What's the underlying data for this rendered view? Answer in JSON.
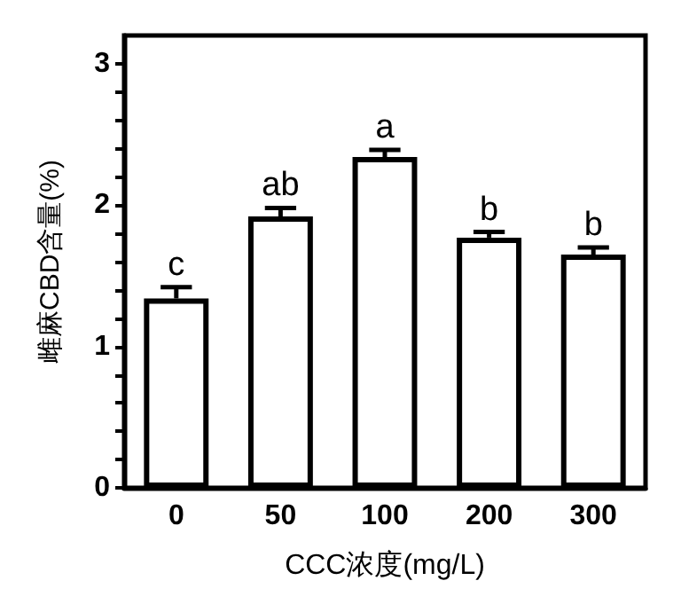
{
  "chart_data": {
    "type": "bar",
    "xlabel": "CCC浓度(mg/L)",
    "ylabel": "雌麻CBD含量(%)",
    "categories": [
      "0",
      "50",
      "100",
      "200",
      "300"
    ],
    "values": [
      1.34,
      1.92,
      2.34,
      1.77,
      1.65
    ],
    "errors": [
      [
        1.34,
        1.42
      ],
      [
        1.92,
        1.98
      ],
      [
        2.34,
        2.39
      ],
      [
        1.77,
        1.81
      ],
      [
        1.65,
        1.7
      ]
    ],
    "color": "#ffffff",
    "ylim": [
      0,
      3.2
    ],
    "yticks": [
      0,
      {
        "value": 0.2,
        "label": null
      },
      {
        "value": 0.4,
        "label": null
      },
      {
        "value": 0.6,
        "label": null
      },
      {
        "value": 0.8,
        "label": null
      },
      1,
      {
        "value": 1.2,
        "label": null
      },
      {
        "value": 1.4,
        "label": null
      },
      {
        "value": 1.6,
        "label": null
      },
      {
        "value": 1.8,
        "label": null
      },
      2,
      {
        "value": 2.2,
        "label": null
      },
      {
        "value": 2.4,
        "label": null
      },
      {
        "value": 2.6,
        "label": null
      },
      {
        "value": 2.8,
        "label": null
      },
      3
    ],
    "annotations": [
      "c",
      "ab",
      "a",
      "b",
      "b"
    ],
    "grid": false
  }
}
